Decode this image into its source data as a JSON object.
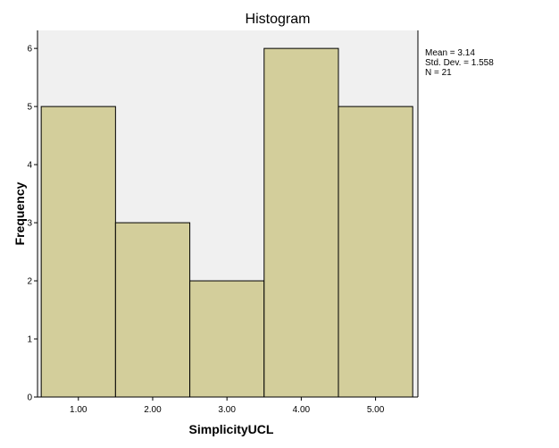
{
  "chart_data": {
    "type": "bar",
    "title": "Histogram",
    "xlabel": "SimplicityUCL",
    "ylabel": "Frequency",
    "categories": [
      "1.00",
      "2.00",
      "3.00",
      "4.00",
      "5.00"
    ],
    "values": [
      5,
      3,
      2,
      6,
      5
    ],
    "x": [
      1,
      2,
      3,
      4,
      5
    ],
    "bin_width": 1,
    "xlim": [
      0.5,
      5.5
    ],
    "ylim": [
      0,
      6
    ],
    "y_ticks": [
      0,
      1,
      2,
      3,
      4,
      5,
      6
    ],
    "grid": false,
    "colors": {
      "bar_fill": "#d3ce9b",
      "bar_stroke": "#000000",
      "plot_background": "#f0f0f0"
    },
    "stats": {
      "mean": "Mean = 3.14",
      "std_dev": "Std. Dev. = 1.558",
      "n": "N = 21"
    },
    "stats_placement": "top-right, outside plot"
  }
}
